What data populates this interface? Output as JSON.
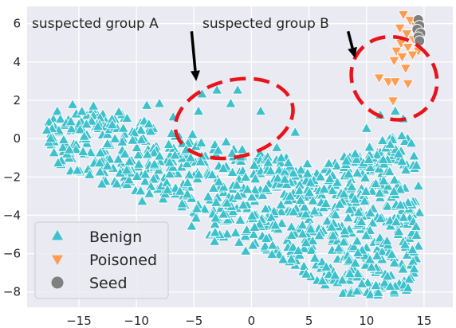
{
  "chart_data": {
    "type": "scatter",
    "title": "",
    "xlabel": "",
    "ylabel": "",
    "xlim": [
      -19.5,
      17.5
    ],
    "ylim": [
      -8.8,
      6.9
    ],
    "x_ticks": [
      -15,
      -10,
      -5,
      0,
      5,
      10,
      15
    ],
    "x_tick_labels": [
      "−15",
      "−10",
      "−5",
      "0",
      "5",
      "10",
      "15"
    ],
    "y_ticks": [
      -8,
      -6,
      -4,
      -2,
      0,
      2,
      4,
      6
    ],
    "y_tick_labels": [
      "−8",
      "−6",
      "−4",
      "−2",
      "0",
      "2",
      "4",
      "6"
    ],
    "grid": true,
    "legend": "bottom-left",
    "annotations": [
      {
        "text": "suspected group A",
        "arrow_from": [
          -5.2,
          5.6
        ],
        "arrow_to": [
          -4.8,
          3.0
        ]
      },
      {
        "text": "suspected group B",
        "arrow_from": [
          8.4,
          5.6
        ],
        "arrow_to": [
          9.0,
          4.2
        ]
      }
    ],
    "highlight_regions": [
      {
        "label": "suspected group A",
        "center": [
          -1.5,
          1.05
        ],
        "radii": [
          5.2,
          2.0
        ],
        "rotation_deg": -14,
        "color": "#e8141b"
      },
      {
        "label": "suspected group B",
        "center": [
          12.4,
          3.15
        ],
        "radii": [
          3.5,
          2.3
        ],
        "rotation_deg": -55,
        "color": "#e8141b"
      }
    ],
    "series": [
      {
        "name": "Benign",
        "marker": "triangle-up",
        "color": "#3fc1cc",
        "regions": [
          {
            "polygon": [
              [
                -16.3,
                2.0
              ],
              [
                -13,
                1.6
              ],
              [
                -11,
                1.4
              ],
              [
                -9,
                0.8
              ],
              [
                -7,
                0.6
              ],
              [
                -5,
                0.2
              ],
              [
                -3,
                -0.3
              ],
              [
                -1,
                -0.6
              ],
              [
                1,
                -0.8
              ],
              [
                3,
                -1.0
              ],
              [
                5,
                -1.3
              ],
              [
                6.5,
                -1.3
              ],
              [
                8,
                -0.8
              ],
              [
                9.5,
                -0.3
              ],
              [
                11,
                -0.2
              ],
              [
                12.5,
                0.2
              ],
              [
                14,
                0.0
              ],
              [
                14.4,
                -1.0
              ],
              [
                14.8,
                -4.0
              ],
              [
                14.5,
                -6.5
              ],
              [
                13.5,
                -8.0
              ],
              [
                11,
                -8.2
              ],
              [
                8,
                -8.2
              ],
              [
                6,
                -7.8
              ],
              [
                3,
                -6.5
              ],
              [
                1,
                -5.8
              ],
              [
                -2,
                -5.5
              ],
              [
                -4,
                -5.0
              ],
              [
                -6,
                -3.8
              ],
              [
                -8,
                -3.2
              ],
              [
                -10,
                -2.8
              ],
              [
                -12,
                -2.4
              ],
              [
                -14,
                -2.1
              ],
              [
                -15.8,
                -1.9
              ],
              [
                -17.7,
                -1.0
              ],
              [
                -17.9,
                0.8
              ]
            ],
            "count": 950
          }
        ],
        "points": [
          [
            -4.3,
            2.3
          ],
          [
            -3.0,
            2.5
          ],
          [
            -1.8,
            1.8
          ],
          [
            -1.2,
            2.5
          ],
          [
            0.8,
            1.4
          ],
          [
            -4.6,
            1.4
          ],
          [
            3.8,
            0.3
          ],
          [
            -2.2,
            -0.2
          ],
          [
            -0.8,
            -0.6
          ],
          [
            -8.0,
            1.8
          ],
          [
            -6.8,
            1.1
          ],
          [
            2.2,
            -0.5
          ],
          [
            -9.1,
            1.7
          ],
          [
            11.2,
            1.2
          ],
          [
            12.5,
            1.4
          ],
          [
            13.2,
            1.0
          ],
          [
            -0.5,
            -5.9
          ],
          [
            -5.2,
            -4.6
          ],
          [
            -9.5,
            -3.3
          ],
          [
            -3.2,
            -5.4
          ],
          [
            -13,
            -2.4
          ],
          [
            -16.8,
            -1.3
          ],
          [
            10.0,
            0.5
          ]
        ]
      },
      {
        "name": "Poisoned",
        "marker": "triangle-down",
        "color": "#fe9d52",
        "points": [
          [
            13.2,
            6.5
          ],
          [
            13.8,
            6.2
          ],
          [
            12.9,
            5.8
          ],
          [
            14.3,
            5.9
          ],
          [
            13.5,
            5.5
          ],
          [
            14.1,
            5.2
          ],
          [
            13.0,
            5.0
          ],
          [
            12.6,
            4.6
          ],
          [
            13.6,
            4.8
          ],
          [
            14.5,
            4.6
          ],
          [
            13.1,
            4.3
          ],
          [
            12.4,
            4.1
          ],
          [
            14.0,
            4.4
          ],
          [
            13.4,
            3.7
          ],
          [
            11.1,
            3.2
          ],
          [
            11.9,
            3.0
          ],
          [
            12.5,
            3.0
          ],
          [
            13.6,
            2.9
          ],
          [
            12.3,
            2.0
          ]
        ]
      },
      {
        "name": "Seed",
        "marker": "circle",
        "color": "#7f7f7f",
        "points": [
          [
            14.5,
            6.2
          ],
          [
            14.6,
            5.9
          ],
          [
            14.4,
            5.7
          ],
          [
            14.7,
            5.5
          ],
          [
            14.5,
            5.3
          ],
          [
            14.6,
            5.1
          ]
        ]
      }
    ]
  },
  "legend": {
    "entries": [
      {
        "label": "Benign",
        "color": "#3fc1cc",
        "marker": "triangle-up"
      },
      {
        "label": "Poisoned",
        "color": "#fe9d52",
        "marker": "triangle-down"
      },
      {
        "label": "Seed",
        "color": "#7f7f7f",
        "marker": "circle"
      }
    ]
  }
}
